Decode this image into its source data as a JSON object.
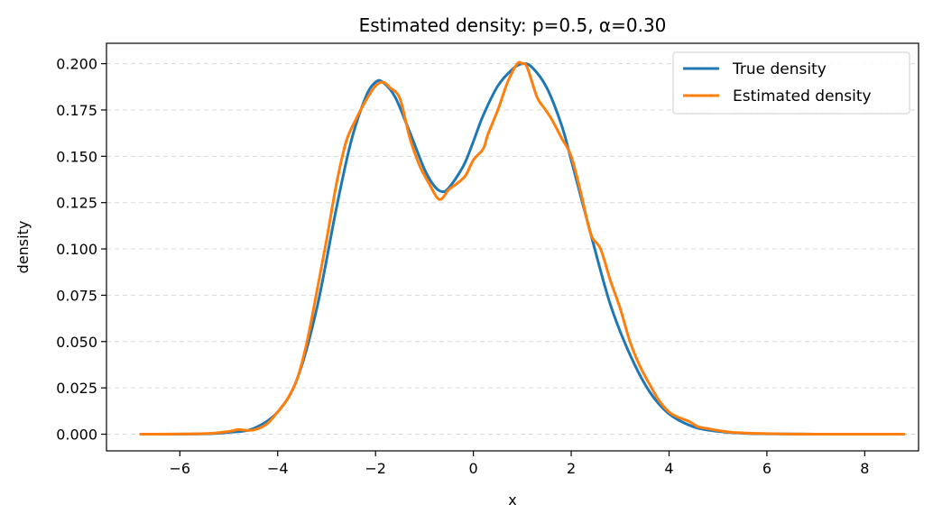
{
  "chart_data": {
    "type": "line",
    "title": "Estimated density: p=0.5, α=0.30",
    "xlabel": "x",
    "ylabel": "density",
    "xlim": [
      -7.5,
      9.1
    ],
    "ylim": [
      -0.009,
      0.211
    ],
    "xticks": [
      -6,
      -4,
      -2,
      0,
      2,
      4,
      6,
      8
    ],
    "xtick_labels": [
      "−6",
      "−4",
      "−2",
      "0",
      "2",
      "4",
      "6",
      "8"
    ],
    "yticks": [
      0.0,
      0.025,
      0.05,
      0.075,
      0.1,
      0.125,
      0.15,
      0.175,
      0.2
    ],
    "ytick_labels": [
      "0.000",
      "0.025",
      "0.050",
      "0.075",
      "0.100",
      "0.125",
      "0.150",
      "0.175",
      "0.200"
    ],
    "grid": "y-dashed",
    "legend_position": "top-right",
    "series": [
      {
        "name": "True density",
        "color": "#1f77b4",
        "x": [
          -6.8,
          -5.5,
          -5.0,
          -4.5,
          -4.0,
          -3.6,
          -3.2,
          -2.8,
          -2.5,
          -2.2,
          -2.0,
          -1.85,
          -1.6,
          -1.3,
          -1.0,
          -0.8,
          -0.65,
          -0.5,
          -0.2,
          0.0,
          0.2,
          0.5,
          0.8,
          1.0,
          1.2,
          1.5,
          1.8,
          2.0,
          2.4,
          2.8,
          3.2,
          3.6,
          4.0,
          4.5,
          5.0,
          5.5,
          6.0,
          7.0,
          8.8
        ],
        "y": [
          0.0,
          0.0002,
          0.001,
          0.003,
          0.012,
          0.03,
          0.068,
          0.122,
          0.158,
          0.182,
          0.19,
          0.19,
          0.182,
          0.163,
          0.143,
          0.134,
          0.131,
          0.133,
          0.145,
          0.158,
          0.172,
          0.188,
          0.197,
          0.2,
          0.198,
          0.187,
          0.167,
          0.148,
          0.108,
          0.07,
          0.043,
          0.023,
          0.011,
          0.004,
          0.0015,
          0.0005,
          0.0002,
          0.0,
          0.0
        ]
      },
      {
        "name": "Estimated density",
        "color": "#ff7f0e",
        "x": [
          -6.8,
          -5.5,
          -5.0,
          -4.8,
          -4.6,
          -4.4,
          -4.2,
          -4.0,
          -3.8,
          -3.6,
          -3.4,
          -3.2,
          -3.0,
          -2.8,
          -2.6,
          -2.4,
          -2.2,
          -2.0,
          -1.85,
          -1.7,
          -1.5,
          -1.3,
          -1.1,
          -0.9,
          -0.75,
          -0.65,
          -0.5,
          -0.3,
          -0.15,
          0.0,
          0.2,
          0.3,
          0.5,
          0.7,
          0.9,
          1.0,
          1.1,
          1.3,
          1.45,
          1.6,
          1.8,
          2.0,
          2.2,
          2.4,
          2.6,
          2.8,
          3.0,
          3.2,
          3.4,
          3.6,
          3.8,
          4.0,
          4.2,
          4.4,
          4.6,
          4.8,
          5.0,
          5.3,
          6.0,
          7.0,
          8.8
        ],
        "y": [
          0.0,
          0.0003,
          0.0015,
          0.0025,
          0.002,
          0.003,
          0.006,
          0.012,
          0.019,
          0.03,
          0.05,
          0.077,
          0.105,
          0.135,
          0.158,
          0.17,
          0.18,
          0.188,
          0.19,
          0.187,
          0.181,
          0.16,
          0.145,
          0.135,
          0.128,
          0.127,
          0.132,
          0.136,
          0.14,
          0.148,
          0.154,
          0.162,
          0.175,
          0.19,
          0.2,
          0.2,
          0.198,
          0.182,
          0.176,
          0.17,
          0.16,
          0.15,
          0.13,
          0.108,
          0.1,
          0.083,
          0.068,
          0.05,
          0.037,
          0.027,
          0.018,
          0.012,
          0.009,
          0.007,
          0.004,
          0.003,
          0.002,
          0.001,
          0.0003,
          0.0,
          0.0
        ]
      }
    ]
  }
}
